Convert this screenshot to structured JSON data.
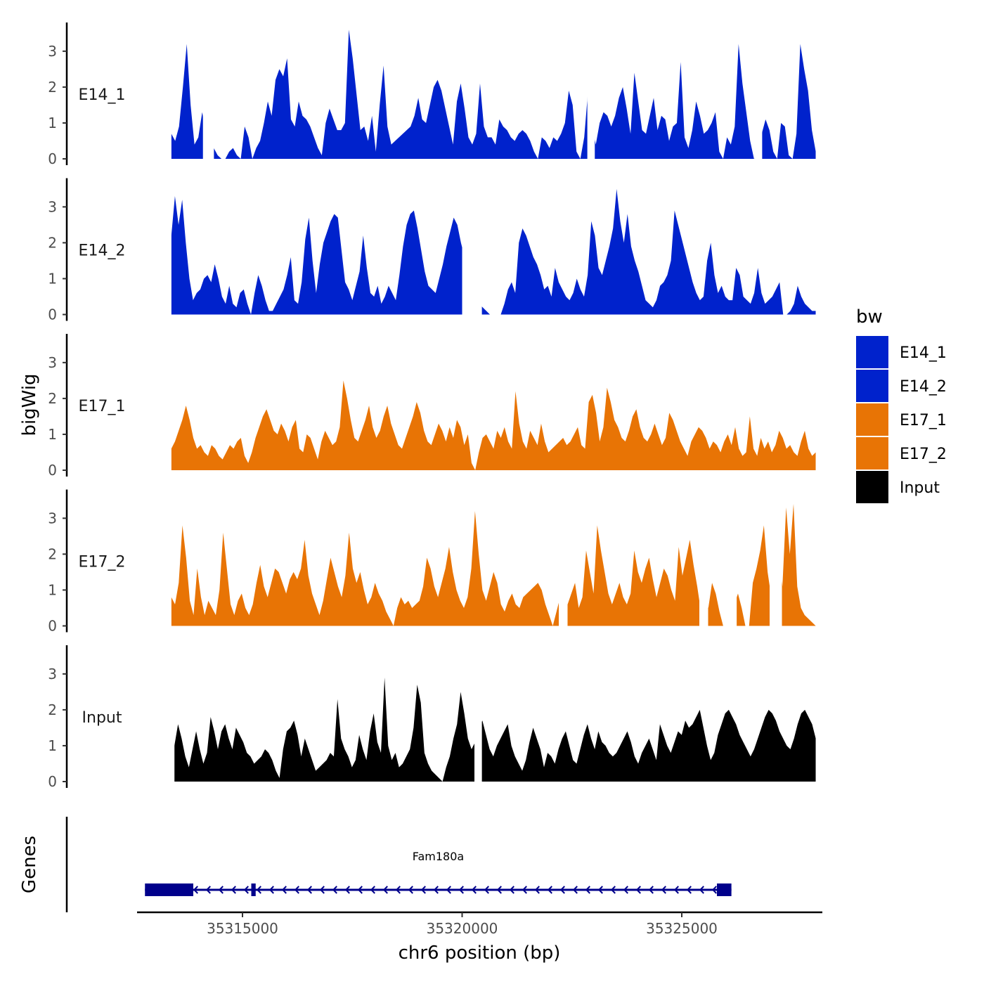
{
  "chart_data": {
    "type": "area",
    "xlabel": "chr6 position (bp)",
    "ylabel": "bigWig",
    "gene_panel_label": "Genes",
    "xlim": [
      35312600,
      35328200
    ],
    "ylim": [
      0,
      3.8
    ],
    "x_ticks": [
      35315000,
      35320000,
      35325000
    ],
    "x_tick_labels": [
      "35315000",
      "35320000",
      "35325000"
    ],
    "y_ticks": [
      0,
      1,
      2,
      3
    ],
    "y_tick_labels": [
      "0",
      "1",
      "2",
      "3"
    ],
    "legend": {
      "title": "bw",
      "entries": [
        {
          "label": "E14_1",
          "color": "#0022cc"
        },
        {
          "label": "E14_2",
          "color": "#0022cc"
        },
        {
          "label": "E17_1",
          "color": "#e87405"
        },
        {
          "label": "E17_2",
          "color": "#e87405"
        },
        {
          "label": "Input",
          "color": "#000000"
        }
      ]
    },
    "series": [
      {
        "name": "E14_1",
        "color": "#0022cc",
        "x_start": 35313380,
        "x_end": 35328050,
        "values": [
          0.7,
          0.5,
          0.9,
          2.0,
          3.2,
          1.5,
          0.4,
          0.6,
          1.3,
          0.7,
          0.4,
          0.3,
          0.1,
          0.0,
          0.0,
          0.2,
          0.3,
          0.1,
          0.0,
          0.9,
          0.6,
          0.0,
          0.3,
          0.5,
          1.0,
          1.6,
          1.2,
          2.2,
          2.5,
          2.3,
          2.8,
          1.1,
          0.9,
          1.6,
          1.2,
          1.1,
          0.9,
          0.6,
          0.3,
          0.1,
          1.0,
          1.4,
          1.1,
          0.8,
          0.8,
          1.0,
          3.6,
          2.8,
          1.8,
          0.8,
          0.9,
          0.5,
          1.2,
          0.2,
          1.5,
          2.6,
          0.9,
          0.4,
          0.5,
          0.6,
          0.7,
          0.8,
          0.9,
          1.2,
          1.7,
          1.1,
          1.0,
          1.5,
          2.0,
          2.2,
          1.9,
          1.4,
          0.9,
          0.4,
          1.6,
          2.1,
          1.4,
          0.6,
          0.4,
          0.7,
          2.1,
          0.9,
          0.6,
          0.6,
          0.4,
          1.1,
          0.9,
          0.8,
          0.6,
          0.5,
          0.7,
          0.8,
          0.7,
          0.5,
          0.2,
          0.0,
          0.6,
          0.5,
          0.3,
          0.6,
          0.5,
          0.7,
          1.0,
          1.9,
          1.5,
          0.2,
          0.0,
          0.6,
          1.9,
          0.9,
          0.4,
          1.0,
          1.3,
          1.2,
          0.9,
          1.2,
          1.7,
          2.0,
          1.4,
          0.7,
          2.4,
          1.6,
          0.8,
          0.7,
          1.2,
          1.7,
          0.8,
          1.2,
          1.1,
          0.5,
          0.9,
          1.0,
          2.7,
          0.6,
          0.3,
          0.8,
          1.6,
          1.2,
          0.7,
          0.8,
          1.0,
          1.3,
          0.2,
          0.0,
          0.6,
          0.4,
          0.9,
          3.2,
          2.1,
          1.3,
          0.5,
          0.0,
          0.3,
          0.7,
          1.1,
          0.8,
          0.2,
          0.0,
          1.0,
          0.9,
          0.1,
          0.0,
          0.7,
          3.2,
          2.5,
          1.9,
          0.8,
          0.2
        ],
        "gaps": [
          [
            35314100,
            35314350
          ],
          [
            35322850,
            35323020
          ],
          [
            35326650,
            35326830
          ]
        ]
      },
      {
        "name": "E14_2",
        "color": "#0022cc",
        "x_start": 35313380,
        "x_end": 35328050,
        "values": [
          2.2,
          3.3,
          2.5,
          3.2,
          2.0,
          1.0,
          0.4,
          0.6,
          0.7,
          1.0,
          1.1,
          0.9,
          1.4,
          1.0,
          0.5,
          0.3,
          0.8,
          0.3,
          0.2,
          0.6,
          0.7,
          0.3,
          0.0,
          0.6,
          1.1,
          0.8,
          0.4,
          0.1,
          0.1,
          0.3,
          0.5,
          0.7,
          1.1,
          1.6,
          0.4,
          0.3,
          0.9,
          2.1,
          2.7,
          1.5,
          0.6,
          1.4,
          2.0,
          2.3,
          2.6,
          2.8,
          2.7,
          1.8,
          0.9,
          0.7,
          0.4,
          0.8,
          1.2,
          2.2,
          1.3,
          0.6,
          0.5,
          0.8,
          0.3,
          0.5,
          0.8,
          0.6,
          0.4,
          1.1,
          1.9,
          2.5,
          2.8,
          2.9,
          2.4,
          1.8,
          1.2,
          0.8,
          0.7,
          0.6,
          1.0,
          1.4,
          1.9,
          2.3,
          2.7,
          2.5,
          2.0,
          1.6,
          1.2,
          0.8,
          0.5,
          0.3,
          0.2,
          0.1,
          0.0,
          0.0,
          0.0,
          0.0,
          0.3,
          0.7,
          0.9,
          0.6,
          2.0,
          2.4,
          2.2,
          1.9,
          1.6,
          1.4,
          1.1,
          0.7,
          0.8,
          0.5,
          1.3,
          0.9,
          0.7,
          0.5,
          0.4,
          0.6,
          1.0,
          0.7,
          0.5,
          1.1,
          2.6,
          2.2,
          1.3,
          1.1,
          1.5,
          1.9,
          2.4,
          3.5,
          2.6,
          2.0,
          2.8,
          1.9,
          1.5,
          1.2,
          0.8,
          0.4,
          0.3,
          0.2,
          0.4,
          0.8,
          0.9,
          1.1,
          1.5,
          2.9,
          2.5,
          2.1,
          1.7,
          1.3,
          0.9,
          0.6,
          0.4,
          0.5,
          1.5,
          2.0,
          1.1,
          0.6,
          0.8,
          0.5,
          0.4,
          0.4,
          1.3,
          1.1,
          0.5,
          0.4,
          0.3,
          0.6,
          1.3,
          0.6,
          0.3,
          0.4,
          0.5,
          0.7,
          0.9,
          0.0,
          0.0,
          0.1,
          0.3,
          0.8,
          0.5,
          0.3,
          0.2,
          0.1,
          0.1
        ],
        "gaps": [
          [
            35320000,
            35320450
          ]
        ]
      },
      {
        "name": "E17_1",
        "color": "#e87405",
        "x_start": 35313380,
        "x_end": 35328050,
        "values": [
          0.6,
          0.8,
          1.1,
          1.4,
          1.8,
          1.4,
          0.9,
          0.6,
          0.7,
          0.5,
          0.4,
          0.7,
          0.6,
          0.4,
          0.3,
          0.5,
          0.7,
          0.6,
          0.8,
          0.9,
          0.4,
          0.2,
          0.5,
          0.9,
          1.2,
          1.5,
          1.7,
          1.4,
          1.1,
          1.0,
          1.3,
          1.1,
          0.8,
          1.2,
          1.4,
          0.6,
          0.5,
          1.0,
          0.9,
          0.6,
          0.3,
          0.8,
          1.1,
          0.9,
          0.7,
          0.8,
          1.2,
          2.5,
          2.0,
          1.4,
          0.9,
          0.8,
          1.1,
          1.4,
          1.8,
          1.2,
          0.9,
          1.1,
          1.5,
          1.8,
          1.3,
          1.0,
          0.7,
          0.6,
          0.9,
          1.2,
          1.5,
          1.9,
          1.6,
          1.1,
          0.8,
          0.7,
          1.0,
          1.3,
          1.1,
          0.8,
          1.2,
          0.9,
          1.4,
          1.2,
          0.7,
          1.0,
          0.2,
          0.0,
          0.5,
          0.9,
          1.0,
          0.8,
          0.6,
          1.1,
          0.9,
          1.2,
          0.8,
          0.6,
          2.2,
          1.3,
          0.8,
          0.6,
          1.1,
          0.9,
          0.7,
          1.3,
          0.8,
          0.5,
          0.6,
          0.7,
          0.8,
          0.9,
          0.7,
          0.8,
          1.0,
          1.2,
          0.7,
          0.6,
          1.9,
          2.1,
          1.6,
          0.8,
          1.2,
          2.3,
          1.9,
          1.4,
          1.2,
          0.9,
          0.8,
          1.1,
          1.5,
          1.7,
          1.2,
          0.9,
          0.8,
          1.0,
          1.3,
          1.0,
          0.7,
          0.9,
          1.6,
          1.4,
          1.1,
          0.8,
          0.6,
          0.4,
          0.8,
          1.0,
          1.2,
          1.1,
          0.9,
          0.6,
          0.8,
          0.7,
          0.5,
          0.8,
          1.0,
          0.7,
          1.2,
          0.6,
          0.4,
          0.5,
          1.5,
          0.6,
          0.4,
          0.9,
          0.6,
          0.8,
          0.5,
          0.7,
          1.1,
          0.9,
          0.6,
          0.7,
          0.5,
          0.4,
          0.8,
          1.1,
          0.6,
          0.4,
          0.5
        ],
        "gaps": []
      },
      {
        "name": "E17_2",
        "color": "#e87405",
        "x_start": 35313380,
        "x_end": 35328050,
        "values": [
          0.8,
          0.6,
          1.2,
          2.8,
          1.9,
          0.7,
          0.3,
          1.6,
          0.8,
          0.3,
          0.7,
          0.5,
          0.3,
          1.0,
          2.6,
          1.6,
          0.6,
          0.3,
          0.7,
          0.9,
          0.5,
          0.3,
          0.6,
          1.2,
          1.7,
          1.1,
          0.8,
          1.2,
          1.6,
          1.5,
          1.2,
          0.9,
          1.3,
          1.5,
          1.3,
          1.6,
          2.4,
          1.4,
          0.9,
          0.6,
          0.3,
          0.7,
          1.3,
          1.9,
          1.5,
          1.1,
          0.8,
          1.4,
          2.6,
          1.6,
          1.2,
          1.5,
          1.0,
          0.6,
          0.8,
          1.2,
          0.9,
          0.7,
          0.4,
          0.2,
          0.0,
          0.5,
          0.8,
          0.6,
          0.7,
          0.5,
          0.6,
          0.7,
          1.1,
          1.9,
          1.6,
          1.1,
          0.8,
          1.2,
          1.6,
          2.2,
          1.5,
          1.0,
          0.7,
          0.5,
          0.8,
          1.6,
          3.2,
          2.0,
          1.0,
          0.7,
          1.1,
          1.5,
          1.2,
          0.6,
          0.4,
          0.7,
          0.9,
          0.6,
          0.5,
          0.8,
          0.9,
          1.0,
          1.1,
          1.2,
          1.0,
          0.6,
          0.3,
          0.0,
          0.4,
          0.8,
          1.0,
          0.6,
          0.9,
          1.2,
          0.5,
          0.8,
          2.1,
          1.5,
          0.9,
          2.8,
          2.1,
          1.5,
          0.9,
          0.6,
          0.9,
          1.2,
          0.8,
          0.6,
          0.9,
          2.1,
          1.5,
          1.2,
          1.6,
          1.9,
          1.3,
          0.8,
          1.2,
          1.6,
          1.4,
          1.0,
          0.7,
          2.2,
          1.4,
          1.9,
          2.4,
          1.7,
          1.1,
          0.4,
          1.0,
          0.5,
          1.2,
          0.9,
          0.4,
          0.0,
          0.0,
          0.0,
          0.6,
          0.9,
          0.5,
          0.0,
          0.0,
          1.2,
          1.6,
          2.1,
          2.8,
          1.5,
          0.8,
          2.9,
          2.3,
          1.1,
          3.3,
          2.0,
          3.4,
          1.1,
          0.5,
          0.3,
          0.2,
          0.1,
          0.0
        ],
        "gaps": [
          [
            35322200,
            35322400
          ],
          [
            35325400,
            35325600
          ],
          [
            35326000,
            35326250
          ],
          [
            35327000,
            35327280
          ]
        ]
      },
      {
        "name": "Input",
        "color": "#000000",
        "x_start": 35313450,
        "x_end": 35328050,
        "values": [
          1.0,
          1.6,
          1.2,
          0.7,
          0.4,
          0.9,
          1.4,
          0.9,
          0.5,
          0.8,
          1.8,
          1.4,
          0.9,
          1.4,
          1.6,
          1.2,
          0.9,
          1.5,
          1.3,
          1.1,
          0.8,
          0.7,
          0.5,
          0.6,
          0.7,
          0.9,
          0.8,
          0.6,
          0.3,
          0.1,
          0.9,
          1.4,
          1.5,
          1.7,
          1.3,
          0.7,
          1.2,
          0.9,
          0.6,
          0.3,
          0.4,
          0.5,
          0.6,
          0.8,
          0.7,
          2.3,
          1.2,
          0.9,
          0.7,
          0.4,
          0.6,
          1.3,
          0.9,
          0.6,
          1.4,
          1.9,
          1.1,
          0.8,
          2.9,
          1.0,
          0.6,
          0.8,
          0.4,
          0.5,
          0.7,
          0.9,
          1.5,
          2.7,
          2.2,
          0.8,
          0.5,
          0.3,
          0.2,
          0.1,
          0.0,
          0.4,
          0.7,
          1.2,
          1.6,
          2.5,
          1.9,
          1.2,
          0.9,
          1.1,
          1.5,
          1.7,
          1.3,
          0.9,
          0.7,
          1.0,
          1.2,
          1.4,
          1.6,
          1.0,
          0.7,
          0.5,
          0.3,
          0.6,
          1.1,
          1.5,
          1.2,
          0.9,
          0.4,
          0.8,
          0.7,
          0.5,
          0.9,
          1.2,
          1.4,
          1.0,
          0.6,
          0.5,
          0.9,
          1.3,
          1.6,
          1.2,
          0.9,
          1.4,
          1.1,
          1.0,
          0.8,
          0.7,
          0.8,
          1.0,
          1.2,
          1.4,
          1.1,
          0.7,
          0.5,
          0.8,
          1.0,
          1.2,
          0.9,
          0.6,
          1.6,
          1.3,
          1.0,
          0.8,
          1.1,
          1.4,
          1.3,
          1.7,
          1.5,
          1.6,
          1.8,
          2.0,
          1.5,
          1.0,
          0.6,
          0.8,
          1.3,
          1.6,
          1.9,
          2.0,
          1.8,
          1.6,
          1.3,
          1.1,
          0.9,
          0.7,
          0.9,
          1.2,
          1.5,
          1.8,
          2.0,
          1.9,
          1.7,
          1.4,
          1.2,
          1.0,
          0.9,
          1.2,
          1.6,
          1.9,
          2.0,
          1.8,
          1.6,
          1.2
        ],
        "gaps": [
          [
            35320280,
            35320450
          ]
        ]
      }
    ],
    "gene": {
      "name": "Fam180a",
      "strand": "-",
      "color": "#00008b",
      "start": 35312780,
      "end": 35326130,
      "exons": [
        [
          35312780,
          35313880
        ],
        [
          35315200,
          35315300
        ],
        [
          35325800,
          35326130
        ]
      ]
    }
  }
}
